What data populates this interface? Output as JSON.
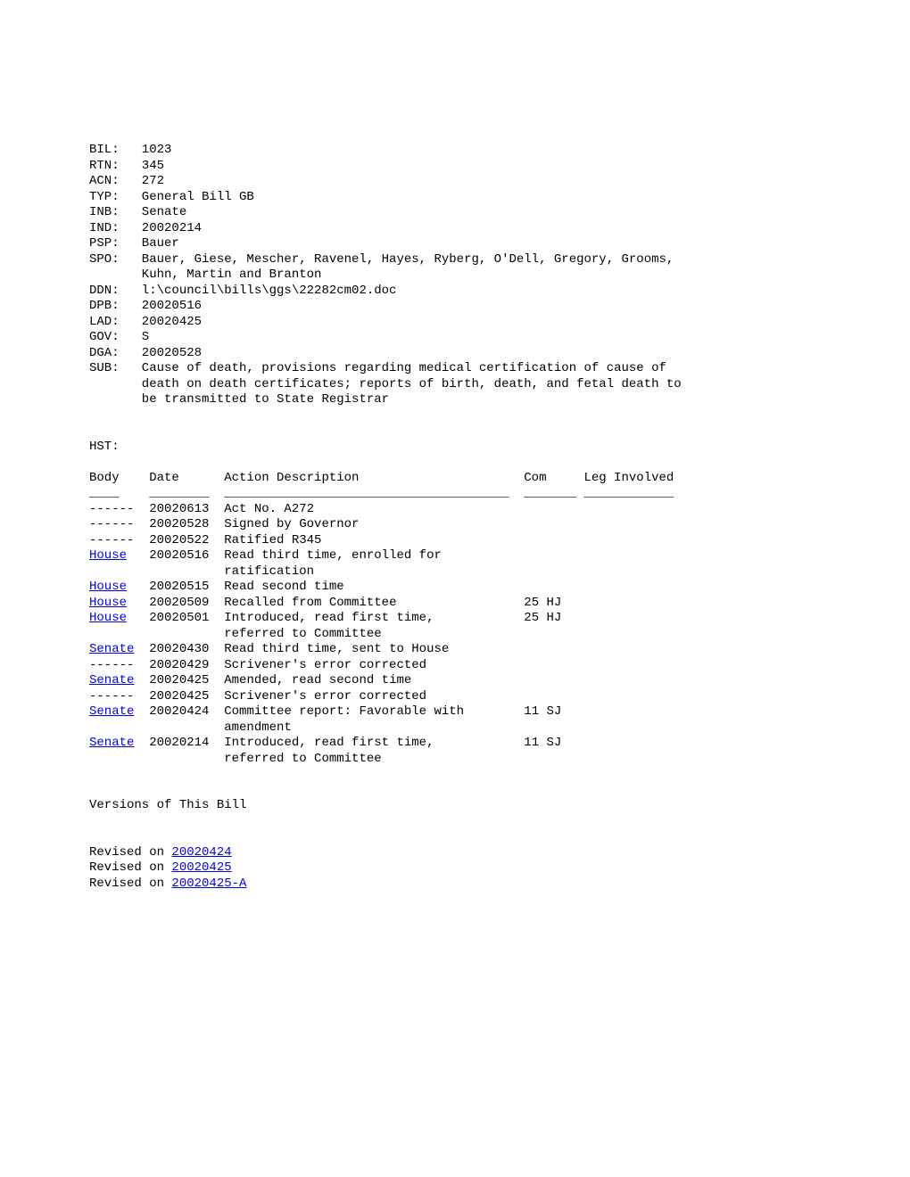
{
  "fields": {
    "BIL": "1023",
    "RTN": "345",
    "ACN": "272",
    "TYP": "General Bill GB",
    "INB": "Senate",
    "IND": "20020214",
    "PSP": "Bauer",
    "SPO_line1": "Bauer, Giese, Mescher, Ravenel, Hayes, Ryberg, O'Dell, Gregory, Grooms,",
    "SPO_line2": "Kuhn, Martin and Branton",
    "DDN": "l:\\council\\bills\\ggs\\22282cm02.doc",
    "DPB": "20020516",
    "LAD": "20020425",
    "GOV": "S",
    "DGA": "20020528",
    "SUB_line1": "Cause of death, provisions regarding medical certification of cause of",
    "SUB_line2": "death on death certificates; reports of birth, death, and fetal death to",
    "SUB_line3": "be transmitted to State Registrar"
  },
  "hst_label": "HST:",
  "header": {
    "body": "Body",
    "date": "Date",
    "action": "Action Description",
    "com": "Com",
    "leg": "Leg Involved"
  },
  "underline": {
    "body": "____",
    "date": "________",
    "action": "______________________________________",
    "com": "_______",
    "leg": "____________"
  },
  "history": [
    {
      "body": "------",
      "link": false,
      "date": "20020613",
      "action1": "Act No. A272",
      "action2": "",
      "com": ""
    },
    {
      "body": "------",
      "link": false,
      "date": "20020528",
      "action1": "Signed by Governor",
      "action2": "",
      "com": ""
    },
    {
      "body": "------",
      "link": false,
      "date": "20020522",
      "action1": "Ratified R345",
      "action2": "",
      "com": ""
    },
    {
      "body": "House",
      "link": true,
      "date": "20020516",
      "action1": "Read third time, enrolled for",
      "action2": "ratification",
      "com": ""
    },
    {
      "body": "House",
      "link": true,
      "date": "20020515",
      "action1": "Read second time",
      "action2": "",
      "com": ""
    },
    {
      "body": "House",
      "link": true,
      "date": "20020509",
      "action1": "Recalled from Committee",
      "action2": "",
      "com": "25 HJ"
    },
    {
      "body": "House",
      "link": true,
      "date": "20020501",
      "action1": "Introduced, read first time,",
      "action2": "referred to Committee",
      "com": "25 HJ"
    },
    {
      "body": "Senate",
      "link": true,
      "date": "20020430",
      "action1": "Read third time, sent to House",
      "action2": "",
      "com": ""
    },
    {
      "body": "------",
      "link": false,
      "date": "20020429",
      "action1": "Scrivener's error corrected",
      "action2": "",
      "com": ""
    },
    {
      "body": "Senate",
      "link": true,
      "date": "20020425",
      "action1": "Amended, read second time",
      "action2": "",
      "com": ""
    },
    {
      "body": "------",
      "link": false,
      "date": "20020425",
      "action1": "Scrivener's error corrected",
      "action2": "",
      "com": ""
    },
    {
      "body": "Senate",
      "link": true,
      "date": "20020424",
      "action1": "Committee report: Favorable with",
      "action2": "amendment",
      "com": "11 SJ"
    },
    {
      "body": "Senate",
      "link": true,
      "date": "20020214",
      "action1": "Introduced, read first time,",
      "action2": "referred to Committee",
      "com": "11 SJ"
    }
  ],
  "versions_title": "Versions of This Bill",
  "revised_label": "Revised on ",
  "versions": [
    "20020424",
    "20020425",
    "20020425-A"
  ]
}
